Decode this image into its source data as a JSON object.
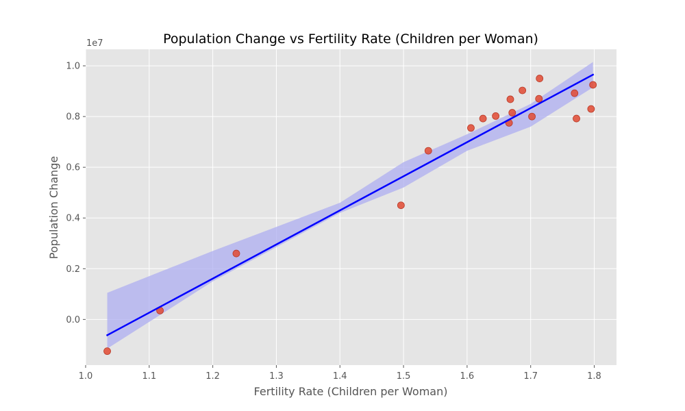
{
  "chart_data": {
    "type": "scatter",
    "title": "Population Change vs Fertility Rate (Children per Woman)",
    "xlabel": "Fertility Rate (Children per Woman)",
    "ylabel": "Population Change",
    "y_offset_label": "1e7",
    "xlim": [
      1.0,
      1.835
    ],
    "ylim": [
      -1.8,
      10.65
    ],
    "x_ticks": [
      1.0,
      1.1,
      1.2,
      1.3,
      1.4,
      1.5,
      1.6,
      1.7,
      1.8
    ],
    "x_tick_labels": [
      "1.0",
      "1.1",
      "1.2",
      "1.3",
      "1.4",
      "1.5",
      "1.6",
      "1.7",
      "1.8"
    ],
    "y_ticks": [
      0.0,
      2.0,
      4.0,
      6.0,
      8.0,
      10.0
    ],
    "y_tick_labels": [
      "0.0",
      "0.2",
      "0.4",
      "0.6",
      "0.8",
      "1.0"
    ],
    "y_unit_note": "y values in units of 1e6 (axis offset 1e7)",
    "grid": true,
    "series": [
      {
        "x": [
          1.034,
          1.117,
          1.237,
          1.496,
          1.539,
          1.606,
          1.625,
          1.645,
          1.666,
          1.668,
          1.671,
          1.687,
          1.702,
          1.713,
          1.714,
          1.769,
          1.772,
          1.795,
          1.798
        ],
        "y": [
          -1.25,
          0.35,
          2.6,
          4.5,
          6.65,
          7.55,
          7.92,
          8.02,
          7.75,
          8.68,
          8.15,
          9.03,
          8.0,
          8.7,
          9.5,
          8.92,
          7.92,
          8.3,
          9.25
        ],
        "color": "#e24a33"
      }
    ],
    "regression": {
      "x": [
        1.034,
        1.798
      ],
      "y": [
        -0.62,
        9.65
      ],
      "color": "#0000ff",
      "band_color": "#aeaef0",
      "band_upper": [
        [
          1.034,
          1.05
        ],
        [
          1.2,
          2.7
        ],
        [
          1.4,
          4.6
        ],
        [
          1.5,
          6.2
        ],
        [
          1.6,
          7.3
        ],
        [
          1.7,
          8.5
        ],
        [
          1.798,
          10.15
        ]
      ],
      "band_lower": [
        [
          1.034,
          -1.15
        ],
        [
          1.2,
          1.5
        ],
        [
          1.4,
          4.2
        ],
        [
          1.5,
          5.2
        ],
        [
          1.6,
          6.65
        ],
        [
          1.7,
          7.6
        ],
        [
          1.798,
          9.15
        ]
      ]
    }
  }
}
